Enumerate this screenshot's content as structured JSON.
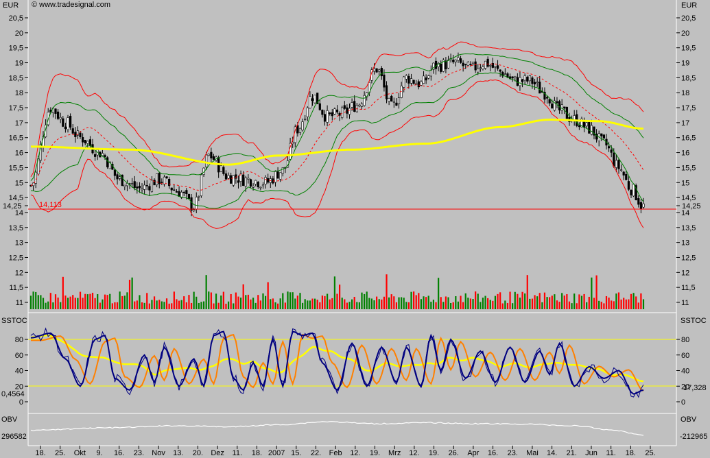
{
  "header": {
    "currency_left": "EUR",
    "currency_right": "EUR",
    "copyright": "© www.tradesignal.com"
  },
  "price_panel": {
    "y_ticks": [
      "20,5",
      "20",
      "19,5",
      "19",
      "18,5",
      "18",
      "17,5",
      "17",
      "16,5",
      "16",
      "15,5",
      "15",
      "14,5",
      "14",
      "13,5",
      "13",
      "12,5",
      "12",
      "11,5",
      "11"
    ],
    "last_price_label": "14,25",
    "support_label": "14,113"
  },
  "stoch_panel": {
    "title": "SSTOC",
    "title_right": "SSTOC",
    "y_ticks": [
      "80",
      "60",
      "40",
      "20",
      "0"
    ],
    "left_value": "0,4564",
    "right_value": "17,328"
  },
  "obv_panel": {
    "title": "OBV",
    "title_right": "OBV",
    "left_value": "296582",
    "right_value": "-212965"
  },
  "x_axis": {
    "ticks": [
      "18.",
      "25.",
      "Okt",
      "9.",
      "16.",
      "23.",
      "Nov",
      "13.",
      "20.",
      "Dez",
      "11.",
      "18.",
      "2007",
      "15.",
      "22.",
      "Feb",
      "12.",
      "19.",
      "Mrz",
      "12.",
      "19.",
      "26.",
      "Apr",
      "16.",
      "23.",
      "Mai",
      "14.",
      "21.",
      "Jun",
      "11.",
      "18.",
      "25."
    ]
  },
  "colors": {
    "background": "#c0c0c0",
    "bollinger": "#ff0000",
    "keltner": "#008000",
    "moving_average": "#ffff00",
    "stoch_fast": "#000080",
    "stoch_slow": "#ff8000",
    "stoch_trend": "#ffff00",
    "obv": "#ffffff"
  },
  "chart_data": {
    "type": "candlestick",
    "price_axis": {
      "ylim": [
        10.8,
        20.9
      ],
      "ticks": [
        20.5,
        20,
        19.5,
        19,
        18.5,
        18,
        17.5,
        17,
        16.5,
        16,
        15.5,
        15,
        14.5,
        14,
        13.5,
        13,
        12.5,
        12,
        11.5,
        11
      ]
    },
    "last_price": 14.25,
    "support_level": 14.113,
    "price_key_points": [
      [
        0,
        14.9
      ],
      [
        8,
        17.5
      ],
      [
        14,
        17.0
      ],
      [
        20,
        16.5
      ],
      [
        28,
        16.0
      ],
      [
        36,
        15.1
      ],
      [
        44,
        14.8
      ],
      [
        52,
        15.1
      ],
      [
        60,
        14.7
      ],
      [
        66,
        14.2
      ],
      [
        72,
        15.9
      ],
      [
        80,
        15.2
      ],
      [
        88,
        15.1
      ],
      [
        95,
        15.0
      ],
      [
        102,
        15.4
      ],
      [
        108,
        16.8
      ],
      [
        114,
        17.9
      ],
      [
        120,
        17.2
      ],
      [
        126,
        17.3
      ],
      [
        132,
        17.6
      ],
      [
        140,
        18.8
      ],
      [
        146,
        17.5
      ],
      [
        152,
        18.5
      ],
      [
        158,
        18.3
      ],
      [
        164,
        18.9
      ],
      [
        172,
        19.0
      ],
      [
        178,
        18.8
      ],
      [
        184,
        19.0
      ],
      [
        190,
        18.7
      ],
      [
        196,
        18.4
      ],
      [
        202,
        18.4
      ],
      [
        208,
        18.0
      ],
      [
        214,
        17.4
      ],
      [
        220,
        17.1
      ],
      [
        226,
        16.8
      ],
      [
        232,
        16.3
      ],
      [
        238,
        15.5
      ],
      [
        243,
        14.8
      ],
      [
        248,
        14.2
      ]
    ],
    "moving_average_key_points": [
      [
        0,
        16.2
      ],
      [
        40,
        16.1
      ],
      [
        80,
        15.6
      ],
      [
        100,
        15.9
      ],
      [
        130,
        16.1
      ],
      [
        160,
        16.3
      ],
      [
        190,
        16.85
      ],
      [
        210,
        17.1
      ],
      [
        230,
        17.05
      ],
      [
        248,
        16.8
      ]
    ],
    "stoch_axis": {
      "ylim": [
        -5,
        100
      ],
      "ticks": [
        80,
        60,
        40,
        20,
        0
      ],
      "bands": [
        80,
        20
      ]
    },
    "stoch_key_points": [
      [
        0,
        82
      ],
      [
        8,
        88
      ],
      [
        14,
        55
      ],
      [
        20,
        20
      ],
      [
        26,
        80
      ],
      [
        30,
        85
      ],
      [
        34,
        30
      ],
      [
        40,
        15
      ],
      [
        46,
        60
      ],
      [
        50,
        25
      ],
      [
        54,
        70
      ],
      [
        60,
        20
      ],
      [
        66,
        55
      ],
      [
        70,
        20
      ],
      [
        74,
        85
      ],
      [
        78,
        90
      ],
      [
        82,
        30
      ],
      [
        86,
        15
      ],
      [
        90,
        50
      ],
      [
        94,
        20
      ],
      [
        98,
        80
      ],
      [
        102,
        20
      ],
      [
        106,
        90
      ],
      [
        110,
        85
      ],
      [
        114,
        88
      ],
      [
        118,
        50
      ],
      [
        124,
        15
      ],
      [
        130,
        75
      ],
      [
        136,
        20
      ],
      [
        142,
        70
      ],
      [
        148,
        25
      ],
      [
        152,
        70
      ],
      [
        158,
        20
      ],
      [
        162,
        85
      ],
      [
        166,
        40
      ],
      [
        170,
        80
      ],
      [
        176,
        30
      ],
      [
        182,
        65
      ],
      [
        188,
        25
      ],
      [
        194,
        70
      ],
      [
        200,
        25
      ],
      [
        206,
        65
      ],
      [
        210,
        35
      ],
      [
        214,
        75
      ],
      [
        220,
        20
      ],
      [
        226,
        45
      ],
      [
        232,
        30
      ],
      [
        238,
        40
      ],
      [
        244,
        10
      ],
      [
        248,
        15
      ]
    ],
    "obv_key_points": [
      [
        0,
        0.72
      ],
      [
        30,
        0.6
      ],
      [
        60,
        0.5
      ],
      [
        80,
        0.55
      ],
      [
        100,
        0.45
      ],
      [
        120,
        0.3
      ],
      [
        140,
        0.4
      ],
      [
        160,
        0.35
      ],
      [
        180,
        0.4
      ],
      [
        200,
        0.42
      ],
      [
        220,
        0.5
      ],
      [
        235,
        0.7
      ],
      [
        248,
        0.95
      ]
    ],
    "bars": 249
  }
}
